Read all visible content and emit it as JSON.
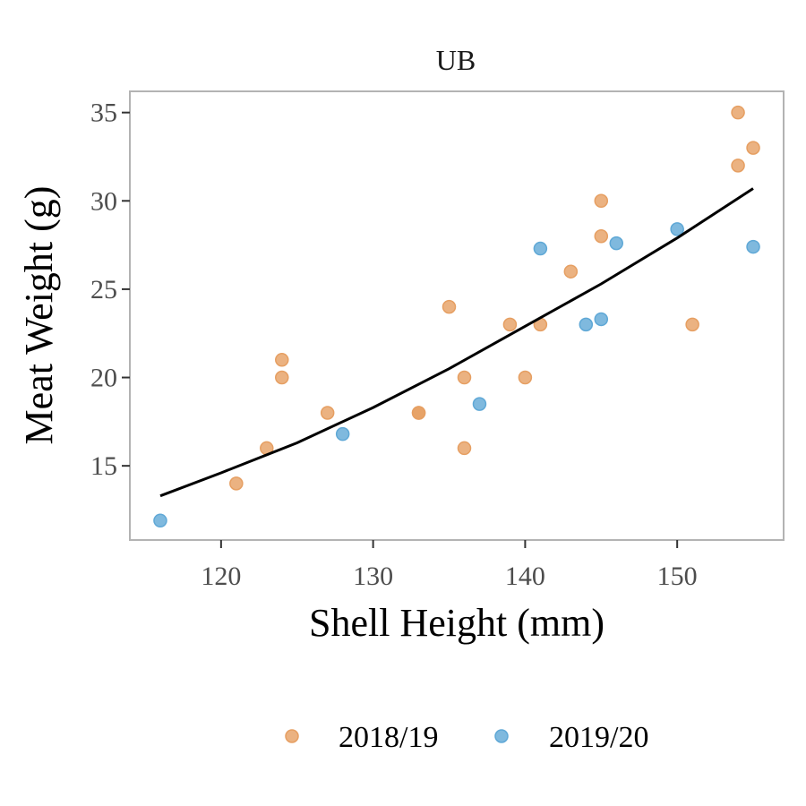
{
  "chart_data": {
    "type": "scatter",
    "title": "UB",
    "xlabel": "Shell Height (mm)",
    "ylabel": "Meat Weight (g)",
    "xlim": [
      114,
      157
    ],
    "ylim": [
      10.8,
      36.2
    ],
    "xticks": [
      120,
      130,
      140,
      150
    ],
    "yticks": [
      15,
      20,
      25,
      30,
      35
    ],
    "grid": false,
    "legend_position": "bottom",
    "series": [
      {
        "name": "2018/19",
        "color": "#e69f62",
        "points": [
          {
            "x": 121,
            "y": 14
          },
          {
            "x": 123,
            "y": 16
          },
          {
            "x": 124,
            "y": 21
          },
          {
            "x": 124,
            "y": 20
          },
          {
            "x": 127,
            "y": 18
          },
          {
            "x": 133,
            "y": 18
          },
          {
            "x": 133,
            "y": 18
          },
          {
            "x": 135,
            "y": 24
          },
          {
            "x": 136,
            "y": 20
          },
          {
            "x": 136,
            "y": 16
          },
          {
            "x": 139,
            "y": 23
          },
          {
            "x": 140,
            "y": 20
          },
          {
            "x": 141,
            "y": 23
          },
          {
            "x": 143,
            "y": 26
          },
          {
            "x": 145,
            "y": 30
          },
          {
            "x": 145,
            "y": 28
          },
          {
            "x": 151,
            "y": 23
          },
          {
            "x": 154,
            "y": 35
          },
          {
            "x": 154,
            "y": 32
          },
          {
            "x": 155,
            "y": 33
          }
        ]
      },
      {
        "name": "2019/20",
        "color": "#5fa8d6",
        "points": [
          {
            "x": 116,
            "y": 11.9
          },
          {
            "x": 128,
            "y": 16.8
          },
          {
            "x": 137,
            "y": 18.5
          },
          {
            "x": 141,
            "y": 27.3
          },
          {
            "x": 144,
            "y": 23
          },
          {
            "x": 145,
            "y": 23.3
          },
          {
            "x": 146,
            "y": 27.6
          },
          {
            "x": 150,
            "y": 28.4
          },
          {
            "x": 155,
            "y": 27.4
          }
        ]
      }
    ],
    "fit_line": {
      "color": "#000000",
      "points": [
        {
          "x": 116,
          "y": 13.3
        },
        {
          "x": 120,
          "y": 14.6
        },
        {
          "x": 125,
          "y": 16.3
        },
        {
          "x": 130,
          "y": 18.3
        },
        {
          "x": 135,
          "y": 20.5
        },
        {
          "x": 140,
          "y": 22.9
        },
        {
          "x": 145,
          "y": 25.3
        },
        {
          "x": 150,
          "y": 27.9
        },
        {
          "x": 155,
          "y": 30.7
        }
      ]
    }
  }
}
